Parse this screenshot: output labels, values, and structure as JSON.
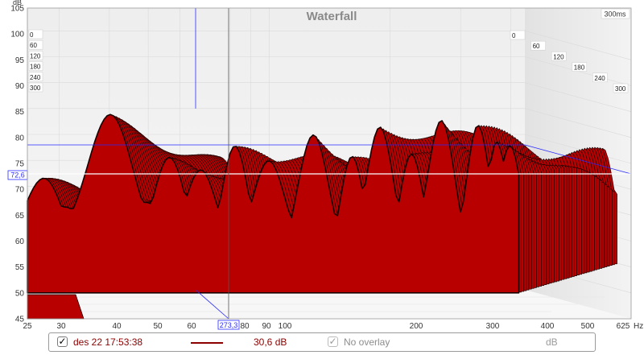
{
  "window": {
    "title": "Waterfall"
  },
  "y_axis": {
    "unit": "dB",
    "ticks": [
      "105",
      "100",
      "95",
      "90",
      "85",
      "80",
      "75",
      "70",
      "65",
      "60",
      "55",
      "50",
      "45"
    ],
    "cursor_value": "72,6"
  },
  "x_axis": {
    "unit": "Hz",
    "ticks": [
      "25",
      "30",
      "40",
      "50",
      "60",
      "80",
      "90",
      "100",
      "200",
      "300",
      "400",
      "500",
      "625"
    ],
    "cursor_value": "273,3"
  },
  "time_axis": {
    "max_label": "300ms",
    "front_labels": [
      "0",
      "60",
      "120",
      "180",
      "240",
      "300"
    ],
    "depth_labels": [
      "0",
      "60",
      "120",
      "180",
      "240",
      "300"
    ]
  },
  "legend": {
    "measurement_checked": true,
    "measurement_label": "des 22 17:53:38",
    "measurement_color": "#8b0000",
    "value": "30,6 dB",
    "overlay_checked": true,
    "overlay_label": "No overlay",
    "overlay_unit": "dB"
  },
  "colors": {
    "fill": "#b80000",
    "edge": "#1a0000",
    "cursor": "#2a2aff",
    "grid": "#dadada"
  },
  "chart_data": {
    "type": "area",
    "title": "Waterfall",
    "x_scale": "log",
    "xlim": [
      25,
      625
    ],
    "ylim": [
      45,
      105
    ],
    "ylabel": "dB",
    "xlabel": "Hz",
    "time_ms": [
      0,
      300
    ],
    "peaks_front_dB": [
      {
        "hz": 40,
        "db": 84
      },
      {
        "hz": 56,
        "db": 76
      },
      {
        "hz": 68,
        "db": 76
      },
      {
        "hz": 82,
        "db": 77
      },
      {
        "hz": 100,
        "db": 78
      },
      {
        "hz": 130,
        "db": 80
      },
      {
        "hz": 190,
        "db": 82
      },
      {
        "hz": 270,
        "db": 83
      },
      {
        "hz": 330,
        "db": 82
      },
      {
        "hz": 400,
        "db": 79
      }
    ]
  }
}
